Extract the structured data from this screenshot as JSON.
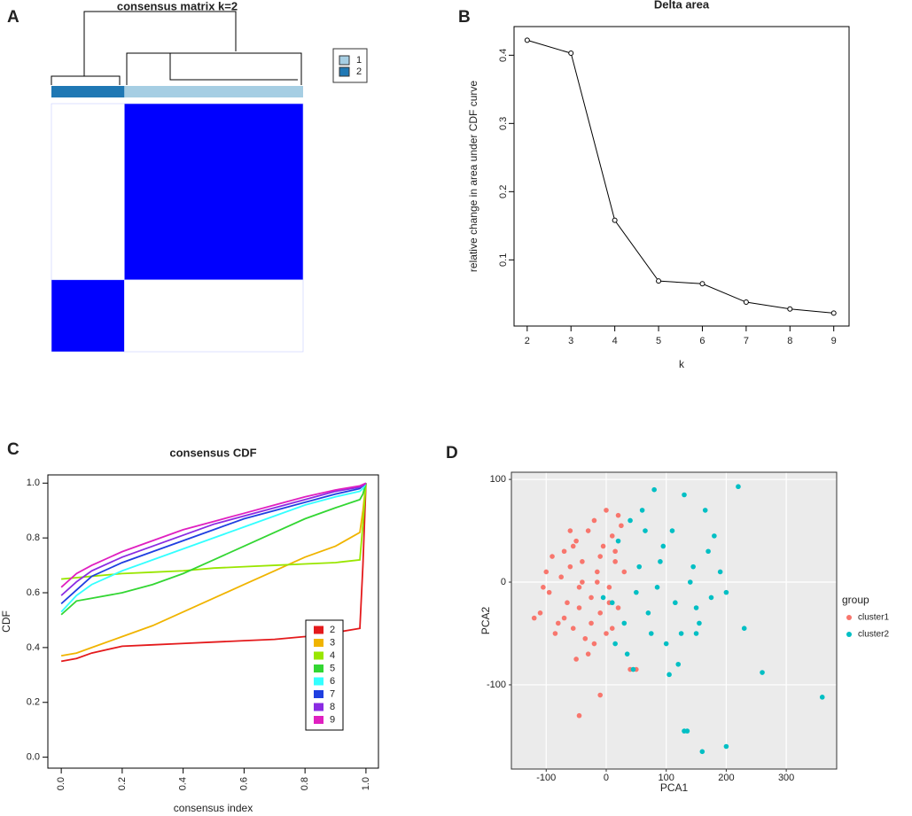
{
  "chart_data": [
    {
      "type": "heatmap",
      "panel": "A",
      "title": "consensus matrix k=2",
      "column_groups": [
        {
          "name": "2",
          "size": 29,
          "color": "#1f78b4"
        },
        {
          "name": "1",
          "size": 71,
          "color": "#a6cee3"
        }
      ],
      "row_groups": [
        "1",
        "2"
      ],
      "values": [
        [
          0,
          1
        ],
        [
          1,
          0
        ]
      ],
      "colors": [
        "#ffffff",
        "#0000ff"
      ],
      "legend": [
        "1",
        "2"
      ]
    },
    {
      "type": "line",
      "panel": "B",
      "title": "Delta area",
      "xlabel": "k",
      "ylabel": "relative change in area under CDF curve",
      "x": [
        2,
        3,
        4,
        5,
        6,
        7,
        8,
        9
      ],
      "values": [
        0.422,
        0.403,
        0.158,
        0.069,
        0.065,
        0.038,
        0.028,
        0.022
      ],
      "xlim": [
        1.7,
        9.35
      ],
      "xticks": [
        2,
        3,
        4,
        5,
        6,
        7,
        8,
        9
      ],
      "ylim": [
        0.003,
        0.442
      ],
      "yticks": [
        0.1,
        0.2,
        0.3,
        0.4
      ],
      "color": "#000000",
      "markers": true
    },
    {
      "type": "line",
      "panel": "C",
      "title": "consensus CDF",
      "xlabel": "consensus index",
      "ylabel": "CDF",
      "x": [
        0,
        0.05,
        0.1,
        0.2,
        0.3,
        0.4,
        0.5,
        0.6,
        0.7,
        0.8,
        0.9,
        0.98,
        0.99,
        1.0
      ],
      "series": [
        {
          "name": "2",
          "color": "#e41a1c",
          "values": [
            0.35,
            0.36,
            0.38,
            0.405,
            0.41,
            0.415,
            0.42,
            0.425,
            0.43,
            0.44,
            0.455,
            0.47,
            0.7,
            1.0
          ]
        },
        {
          "name": "3",
          "color": "#f0b400",
          "values": [
            0.37,
            0.38,
            0.4,
            0.44,
            0.48,
            0.53,
            0.58,
            0.63,
            0.68,
            0.73,
            0.77,
            0.82,
            0.9,
            1.0
          ]
        },
        {
          "name": "4",
          "color": "#99e600",
          "values": [
            0.65,
            0.655,
            0.66,
            0.67,
            0.675,
            0.68,
            0.69,
            0.695,
            0.7,
            0.705,
            0.71,
            0.72,
            0.85,
            1.0
          ]
        },
        {
          "name": "5",
          "color": "#33d633",
          "values": [
            0.52,
            0.57,
            0.58,
            0.6,
            0.63,
            0.67,
            0.72,
            0.77,
            0.82,
            0.87,
            0.91,
            0.94,
            0.96,
            1.0
          ]
        },
        {
          "name": "6",
          "color": "#33ffff",
          "values": [
            0.53,
            0.59,
            0.63,
            0.68,
            0.72,
            0.76,
            0.8,
            0.84,
            0.88,
            0.92,
            0.95,
            0.97,
            0.98,
            1.0
          ]
        },
        {
          "name": "7",
          "color": "#1f3fe0",
          "values": [
            0.56,
            0.61,
            0.66,
            0.71,
            0.75,
            0.79,
            0.83,
            0.87,
            0.9,
            0.93,
            0.96,
            0.98,
            0.99,
            1.0
          ]
        },
        {
          "name": "8",
          "color": "#8a2be2",
          "values": [
            0.59,
            0.64,
            0.68,
            0.73,
            0.77,
            0.81,
            0.85,
            0.88,
            0.91,
            0.94,
            0.97,
            0.985,
            0.99,
            1.0
          ]
        },
        {
          "name": "9",
          "color": "#e020c0",
          "values": [
            0.62,
            0.67,
            0.7,
            0.75,
            0.79,
            0.83,
            0.86,
            0.89,
            0.92,
            0.95,
            0.975,
            0.99,
            0.995,
            1.0
          ]
        }
      ],
      "xlim": [
        -0.044,
        1.041
      ],
      "xticks": [
        {
          "value": 0,
          "label": "0.0"
        },
        0.2,
        0.4,
        0.6,
        0.8,
        {
          "value": 1,
          "label": "1.0"
        }
      ],
      "ylim": [
        -0.04,
        1.03
      ],
      "yticks": [
        {
          "value": 0,
          "label": "0.0"
        },
        0.2,
        0.4,
        0.6,
        0.8,
        {
          "value": 1,
          "label": "1.0"
        }
      ]
    },
    {
      "type": "scatter",
      "panel": "D",
      "xlabel": "PCA1",
      "ylabel": "PCA2",
      "legend_title": "group",
      "series": [
        {
          "name": "cluster1",
          "color": "#f8766d",
          "x": [
            -110,
            -100,
            -95,
            -90,
            -80,
            -75,
            -70,
            -65,
            -60,
            -55,
            -50,
            -45,
            -40,
            -35,
            -30,
            -25,
            -20,
            -15,
            -10,
            -5,
            0,
            5,
            10,
            15,
            20,
            25,
            30,
            -85,
            -70,
            -55,
            -40,
            -25,
            -10,
            5,
            20,
            -60,
            -45,
            -30,
            -15,
            0,
            15,
            -105,
            -50,
            -20,
            10,
            -45,
            -10,
            -120,
            50,
            40
          ],
          "values": [
            -30,
            10,
            -10,
            25,
            -40,
            5,
            30,
            -20,
            15,
            -45,
            40,
            -5,
            20,
            -55,
            50,
            -15,
            60,
            10,
            -30,
            35,
            70,
            -5,
            45,
            20,
            -25,
            55,
            10,
            -50,
            -35,
            35,
            0,
            -40,
            25,
            -20,
            65,
            50,
            -25,
            -70,
            0,
            -50,
            30,
            -5,
            -75,
            -60,
            -45,
            -130,
            -110,
            -35,
            -85,
            -85
          ]
        },
        {
          "name": "cluster2",
          "color": "#00bfc4",
          "x": [
            10,
            20,
            30,
            40,
            50,
            60,
            70,
            80,
            90,
            100,
            110,
            120,
            130,
            140,
            150,
            160,
            170,
            180,
            190,
            200,
            15,
            35,
            55,
            75,
            95,
            115,
            135,
            155,
            175,
            45,
            65,
            85,
            105,
            125,
            145,
            165,
            220,
            230,
            260,
            360,
            130,
            150,
            200,
            -5
          ],
          "values": [
            -20,
            40,
            -40,
            60,
            -10,
            70,
            -30,
            90,
            20,
            -60,
            50,
            -80,
            85,
            0,
            -50,
            -165,
            30,
            45,
            10,
            -160,
            -60,
            -70,
            15,
            -50,
            35,
            -20,
            -145,
            -40,
            -15,
            -85,
            50,
            -5,
            -90,
            -50,
            15,
            70,
            93,
            -45,
            -88,
            -112,
            -145,
            -25,
            -10,
            -15
          ]
        }
      ],
      "xlim": [
        -158,
        384
      ],
      "xticks": [
        -100,
        0,
        100,
        200,
        300
      ],
      "ylim": [
        -182,
        107
      ],
      "yticks": [
        -100,
        0,
        100
      ],
      "grid": true
    }
  ]
}
